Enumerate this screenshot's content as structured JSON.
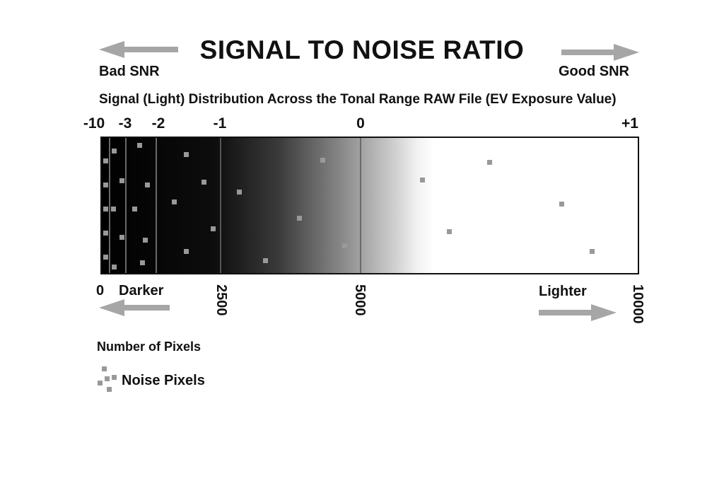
{
  "title": "SIGNAL TO NOISE RATIO",
  "bad_snr": "Bad SNR",
  "good_snr": "Good SNR",
  "subtitle": "Signal (Light) Distribution Across the Tonal Range RAW File (EV Exposure Value)",
  "ev_labels": [
    "-10",
    "-3",
    "-2",
    "-1",
    "0",
    "+1"
  ],
  "pixel_axis": {
    "zero": "0",
    "darker": "Darker",
    "lighter": "Lighter",
    "ticks": [
      "2500",
      "5000",
      "10000"
    ]
  },
  "axis_caption": "Number of Pixels",
  "legend": {
    "label": "Noise Pixels"
  },
  "colors": {
    "arrow": "#a6a6a6",
    "noise": "#999999",
    "dark": "#000000",
    "light": "#ffffff",
    "border": "#111111"
  }
}
